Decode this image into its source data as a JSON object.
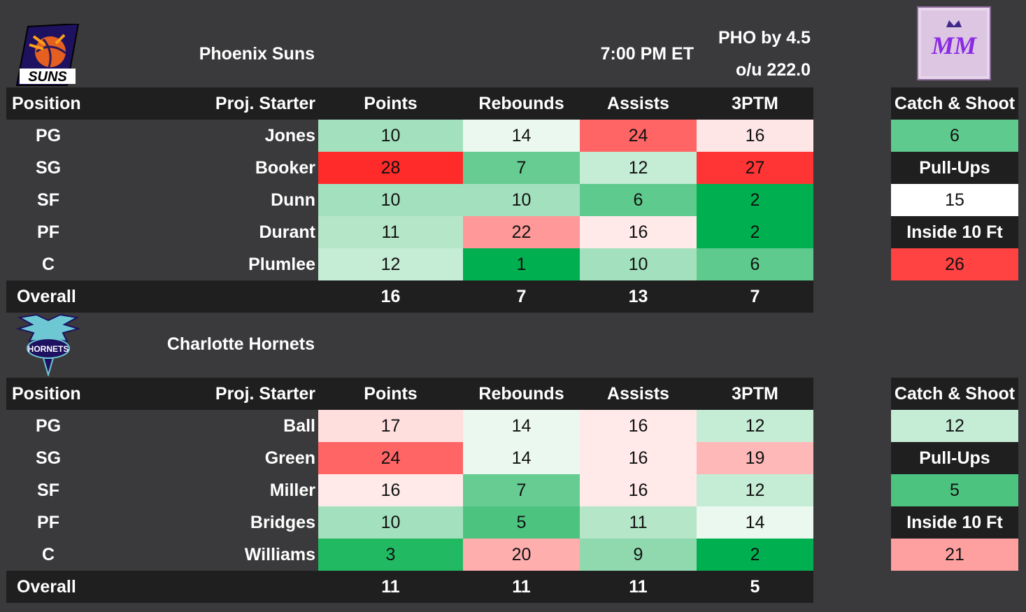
{
  "colors": {
    "background": "#3a393b",
    "header_bg": "#1f1f20",
    "best_green": "#00b050",
    "worst_red": "#ff2a2a"
  },
  "game": {
    "time": "7:00 PM ET",
    "spread": "PHO by 4.5",
    "over_under": "o/u 222.0"
  },
  "brand_logo": {
    "icon": "mm-logo-icon",
    "text": "MM"
  },
  "columns": {
    "position": "Position",
    "starter": "Proj. Starter",
    "points": "Points",
    "rebounds": "Rebounds",
    "assists": "Assists",
    "threes": "3PTM"
  },
  "side_labels": {
    "catch_shoot": "Catch & Shoot",
    "pull_ups": "Pull-Ups",
    "inside_10": "Inside 10 Ft"
  },
  "teams": [
    {
      "name": "Phoenix Suns",
      "logo_icon": "phoenix-suns-logo-icon",
      "logo_text": "SUNS",
      "rows": [
        {
          "pos": "PG",
          "player": "Jones",
          "points": "10",
          "rebounds": "14",
          "assists": "24",
          "threes": "16"
        },
        {
          "pos": "SG",
          "player": "Booker",
          "points": "28",
          "rebounds": "7",
          "assists": "12",
          "threes": "27"
        },
        {
          "pos": "SF",
          "player": "Dunn",
          "points": "10",
          "rebounds": "10",
          "assists": "6",
          "threes": "2"
        },
        {
          "pos": "PF",
          "player": "Durant",
          "points": "11",
          "rebounds": "22",
          "assists": "16",
          "threes": "2"
        },
        {
          "pos": "C",
          "player": "Plumlee",
          "points": "12",
          "rebounds": "1",
          "assists": "10",
          "threes": "6"
        }
      ],
      "overall": {
        "label": "Overall",
        "points": "16",
        "rebounds": "7",
        "assists": "13",
        "threes": "7"
      },
      "side": {
        "catch_shoot": "6",
        "pull_ups": "15",
        "inside_10": "26"
      }
    },
    {
      "name": "Charlotte Hornets",
      "logo_icon": "charlotte-hornets-logo-icon",
      "logo_text": "HORNETS",
      "rows": [
        {
          "pos": "PG",
          "player": "Ball",
          "points": "17",
          "rebounds": "14",
          "assists": "16",
          "threes": "12"
        },
        {
          "pos": "SG",
          "player": "Green",
          "points": "24",
          "rebounds": "14",
          "assists": "16",
          "threes": "19"
        },
        {
          "pos": "SF",
          "player": "Miller",
          "points": "16",
          "rebounds": "7",
          "assists": "16",
          "threes": "12"
        },
        {
          "pos": "PF",
          "player": "Bridges",
          "points": "10",
          "rebounds": "5",
          "assists": "11",
          "threes": "14"
        },
        {
          "pos": "C",
          "player": "Williams",
          "points": "3",
          "rebounds": "20",
          "assists": "9",
          "threes": "2"
        }
      ],
      "overall": {
        "label": "Overall",
        "points": "11",
        "rebounds": "11",
        "assists": "11",
        "threes": "5"
      },
      "side": {
        "catch_shoot": "12",
        "pull_ups": "5",
        "inside_10": "21"
      }
    }
  ]
}
